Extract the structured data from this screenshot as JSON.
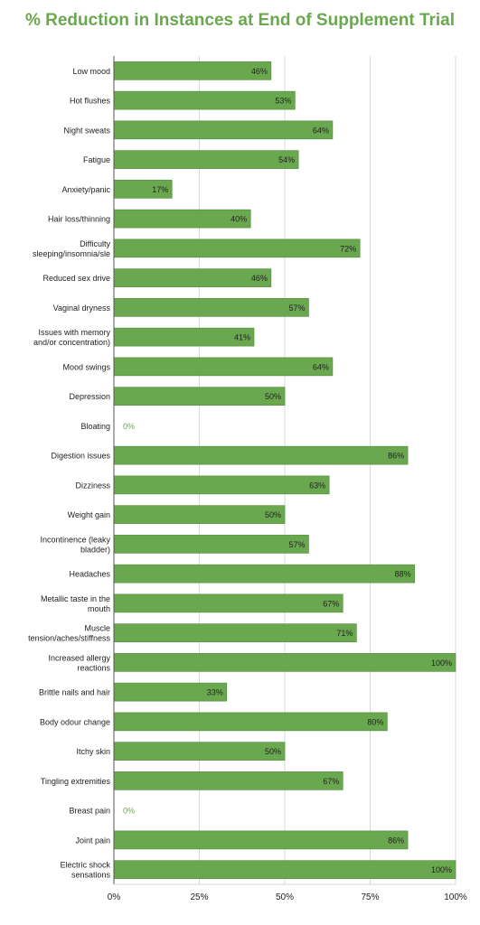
{
  "chart_data": {
    "type": "bar",
    "orientation": "horizontal",
    "title": "% Reduction in Instances at End of Supplement Trial",
    "xlabel": "",
    "ylabel": "",
    "xlim": [
      0,
      100
    ],
    "x_tick_labels": [
      "0%",
      "25%",
      "50%",
      "75%",
      "100%"
    ],
    "grid": true,
    "legend": "none",
    "categories": [
      "Low mood",
      "Hot flushes",
      "Night sweats",
      "Fatigue",
      "Anxiety/panic",
      "Hair loss/thinning",
      "Difficulty sleeping/insomnia/sle",
      "Reduced sex drive",
      "Vaginal dryness",
      "Issues with memory and/or concentration)",
      "Mood swings",
      "Depression",
      "Bloating",
      "Digestion issues",
      "Dizziness",
      "Weight gain",
      "Incontinence (leaky bladder)",
      "Headaches",
      "Metallic taste in the mouth",
      "Muscle tension/aches/stiffness",
      "Increased allergy reactions",
      "Brittle nails and hair",
      "Body odour change",
      "Itchy skin",
      "Tingling extremities",
      "Breast pain",
      "Joint pain",
      "Electric shock sensations"
    ],
    "category_label_lines": [
      [
        "Low mood"
      ],
      [
        "Hot flushes"
      ],
      [
        "Night sweats"
      ],
      [
        "Fatigue"
      ],
      [
        "Anxiety/panic"
      ],
      [
        "Hair loss/thinning"
      ],
      [
        "Difficulty",
        "sleeping/insomnia/sle"
      ],
      [
        "Reduced sex drive"
      ],
      [
        "Vaginal dryness"
      ],
      [
        "Issues with memory",
        "and/or concentration)"
      ],
      [
        "Mood swings"
      ],
      [
        "Depression"
      ],
      [
        "Bloating"
      ],
      [
        "Digestion issues"
      ],
      [
        "Dizziness"
      ],
      [
        "Weight gain"
      ],
      [
        "Incontinence (leaky",
        "bladder)"
      ],
      [
        "Headaches"
      ],
      [
        "Metallic taste in the",
        "mouth"
      ],
      [
        "Muscle",
        "tension/aches/stiffness"
      ],
      [
        "Increased allergy",
        "reactions"
      ],
      [
        "Brittle nails and hair"
      ],
      [
        "Body odour change"
      ],
      [
        "Itchy skin"
      ],
      [
        "Tingling extremities"
      ],
      [
        "Breast pain"
      ],
      [
        "Joint pain"
      ],
      [
        "Electric shock",
        "sensations"
      ]
    ],
    "values": [
      46,
      53,
      64,
      54,
      17,
      40,
      72,
      46,
      57,
      41,
      64,
      50,
      0,
      86,
      63,
      50,
      57,
      88,
      67,
      71,
      100,
      33,
      80,
      50,
      67,
      0,
      86,
      100
    ],
    "data_labels": [
      "46%",
      "53%",
      "64%",
      "54%",
      "17%",
      "40%",
      "72%",
      "46%",
      "57%",
      "41%",
      "64%",
      "50%",
      "0%",
      "86%",
      "63%",
      "50%",
      "57%",
      "88%",
      "67%",
      "71%",
      "100%",
      "33%",
      "80%",
      "50%",
      "67%",
      "0%",
      "86%",
      "100%"
    ]
  },
  "colors": {
    "title": "#6aa84f",
    "bar": "#6aa84f",
    "bar_stroke": "#4f8a38",
    "zero_label": "#6aa84f",
    "gridline": "#d9d9d9",
    "axis": "#555555",
    "text": "#222222"
  }
}
